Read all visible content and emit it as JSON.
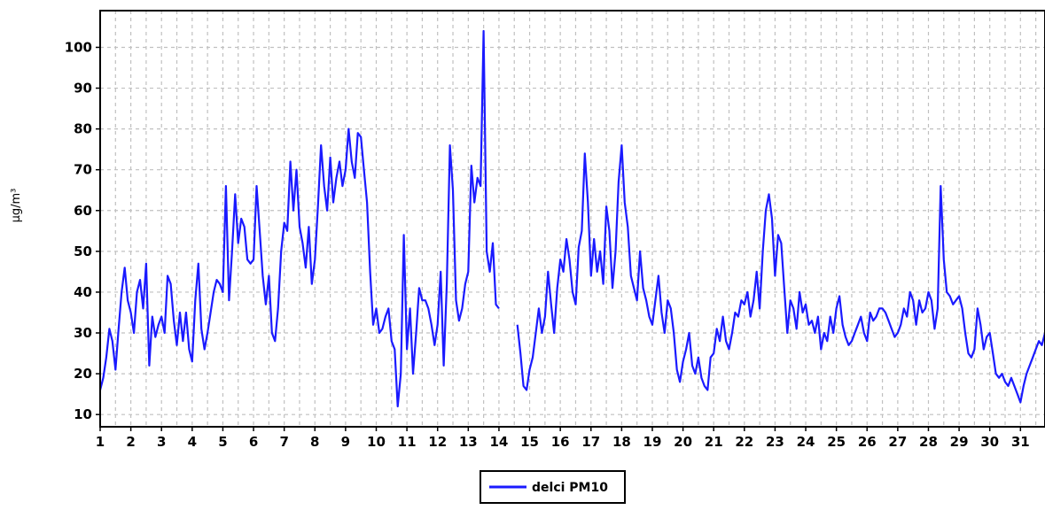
{
  "chart_data": {
    "type": "line",
    "title": "",
    "xlabel": "",
    "ylabel": "µg/m³",
    "xlim": [
      1,
      31.8
    ],
    "ylim": [
      7,
      109
    ],
    "x_ticks": [
      "1",
      "2",
      "3",
      "4",
      "5",
      "6",
      "7",
      "8",
      "9",
      "10",
      "11",
      "12",
      "13",
      "14",
      "15",
      "16",
      "17",
      "18",
      "19",
      "20",
      "21",
      "22",
      "23",
      "24",
      "25",
      "26",
      "27",
      "28",
      "29",
      "30",
      "31"
    ],
    "y_ticks": [
      10,
      20,
      30,
      40,
      50,
      60,
      70,
      80,
      90,
      100
    ],
    "grid": true,
    "legend": "bottom-center",
    "colors": {
      "series": "#1a1aff",
      "grid": "#c0c0c0",
      "axis": "#000000"
    },
    "series": [
      {
        "name": "delci PM10",
        "points": [
          [
            1.0,
            16
          ],
          [
            1.1,
            19
          ],
          [
            1.2,
            24
          ],
          [
            1.3,
            31
          ],
          [
            1.4,
            28
          ],
          [
            1.5,
            21
          ],
          [
            1.6,
            31
          ],
          [
            1.7,
            40
          ],
          [
            1.8,
            46
          ],
          [
            1.9,
            38
          ],
          [
            2.0,
            35
          ],
          [
            2.1,
            30
          ],
          [
            2.2,
            40
          ],
          [
            2.3,
            43
          ],
          [
            2.4,
            36
          ],
          [
            2.5,
            47
          ],
          [
            2.6,
            22
          ],
          [
            2.7,
            34
          ],
          [
            2.8,
            29
          ],
          [
            2.9,
            32
          ],
          [
            3.0,
            34
          ],
          [
            3.1,
            30
          ],
          [
            3.2,
            44
          ],
          [
            3.3,
            42
          ],
          [
            3.4,
            33
          ],
          [
            3.5,
            27
          ],
          [
            3.6,
            35
          ],
          [
            3.7,
            28
          ],
          [
            3.8,
            35
          ],
          [
            3.9,
            26
          ],
          [
            4.0,
            23
          ],
          [
            4.1,
            38
          ],
          [
            4.2,
            47
          ],
          [
            4.3,
            31
          ],
          [
            4.4,
            26
          ],
          [
            4.5,
            30
          ],
          [
            4.6,
            35
          ],
          [
            4.7,
            40
          ],
          [
            4.8,
            43
          ],
          [
            4.9,
            42
          ],
          [
            5.0,
            40
          ],
          [
            5.1,
            66
          ],
          [
            5.2,
            38
          ],
          [
            5.3,
            50
          ],
          [
            5.4,
            64
          ],
          [
            5.5,
            52
          ],
          [
            5.6,
            58
          ],
          [
            5.7,
            56
          ],
          [
            5.8,
            48
          ],
          [
            5.9,
            47
          ],
          [
            6.0,
            48
          ],
          [
            6.1,
            66
          ],
          [
            6.2,
            55
          ],
          [
            6.3,
            44
          ],
          [
            6.4,
            37
          ],
          [
            6.5,
            44
          ],
          [
            6.6,
            30
          ],
          [
            6.7,
            28
          ],
          [
            6.8,
            36
          ],
          [
            6.9,
            50
          ],
          [
            7.0,
            57
          ],
          [
            7.1,
            55
          ],
          [
            7.2,
            72
          ],
          [
            7.3,
            60
          ],
          [
            7.4,
            70
          ],
          [
            7.5,
            56
          ],
          [
            7.6,
            52
          ],
          [
            7.7,
            46
          ],
          [
            7.8,
            56
          ],
          [
            7.9,
            42
          ],
          [
            8.0,
            48
          ],
          [
            8.1,
            61
          ],
          [
            8.2,
            76
          ],
          [
            8.3,
            66
          ],
          [
            8.4,
            60
          ],
          [
            8.5,
            73
          ],
          [
            8.6,
            62
          ],
          [
            8.7,
            68
          ],
          [
            8.8,
            72
          ],
          [
            8.9,
            66
          ],
          [
            9.0,
            70
          ],
          [
            9.1,
            80
          ],
          [
            9.2,
            72
          ],
          [
            9.3,
            68
          ],
          [
            9.4,
            79
          ],
          [
            9.5,
            78
          ],
          [
            9.6,
            70
          ],
          [
            9.7,
            62
          ],
          [
            9.8,
            45
          ],
          [
            9.9,
            32
          ],
          [
            10.0,
            36
          ],
          [
            10.1,
            30
          ],
          [
            10.2,
            31
          ],
          [
            10.3,
            34
          ],
          [
            10.4,
            36
          ],
          [
            10.5,
            28
          ],
          [
            10.6,
            26
          ],
          [
            10.7,
            12
          ],
          [
            10.8,
            20
          ],
          [
            10.9,
            54
          ],
          [
            11.0,
            26
          ],
          [
            11.1,
            36
          ],
          [
            11.2,
            20
          ],
          [
            11.3,
            30
          ],
          [
            11.4,
            41
          ],
          [
            11.5,
            38
          ],
          [
            11.6,
            38
          ],
          [
            11.7,
            36
          ],
          [
            11.8,
            32
          ],
          [
            11.9,
            27
          ],
          [
            12.0,
            32
          ],
          [
            12.1,
            45
          ],
          [
            12.2,
            22
          ],
          [
            12.3,
            42
          ],
          [
            12.4,
            76
          ],
          [
            12.5,
            65
          ],
          [
            12.6,
            38
          ],
          [
            12.7,
            33
          ],
          [
            12.8,
            36
          ],
          [
            12.9,
            42
          ],
          [
            13.0,
            45
          ],
          [
            13.1,
            71
          ],
          [
            13.2,
            62
          ],
          [
            13.3,
            68
          ],
          [
            13.4,
            66
          ],
          [
            13.5,
            104
          ],
          [
            13.6,
            50
          ],
          [
            13.7,
            45
          ],
          [
            13.8,
            52
          ],
          [
            13.9,
            37
          ],
          [
            14.0,
            36
          ],
          null,
          [
            14.6,
            32
          ],
          [
            14.7,
            25
          ],
          [
            14.8,
            17
          ],
          [
            14.9,
            16
          ],
          [
            15.0,
            21
          ],
          [
            15.1,
            24
          ],
          [
            15.2,
            30
          ],
          [
            15.3,
            36
          ],
          [
            15.4,
            30
          ],
          [
            15.5,
            34
          ],
          [
            15.6,
            45
          ],
          [
            15.7,
            37
          ],
          [
            15.8,
            30
          ],
          [
            15.9,
            41
          ],
          [
            16.0,
            48
          ],
          [
            16.1,
            45
          ],
          [
            16.2,
            53
          ],
          [
            16.3,
            48
          ],
          [
            16.4,
            40
          ],
          [
            16.5,
            37
          ],
          [
            16.6,
            51
          ],
          [
            16.7,
            55
          ],
          [
            16.8,
            74
          ],
          [
            16.9,
            62
          ],
          [
            17.0,
            44
          ],
          [
            17.1,
            53
          ],
          [
            17.2,
            45
          ],
          [
            17.3,
            50
          ],
          [
            17.4,
            42
          ],
          [
            17.5,
            61
          ],
          [
            17.6,
            55
          ],
          [
            17.7,
            41
          ],
          [
            17.8,
            50
          ],
          [
            17.9,
            67
          ],
          [
            18.0,
            76
          ],
          [
            18.1,
            62
          ],
          [
            18.2,
            56
          ],
          [
            18.3,
            44
          ],
          [
            18.4,
            41
          ],
          [
            18.5,
            38
          ],
          [
            18.6,
            50
          ],
          [
            18.7,
            41
          ],
          [
            18.8,
            38
          ],
          [
            18.9,
            34
          ],
          [
            19.0,
            32
          ],
          [
            19.1,
            38
          ],
          [
            19.2,
            44
          ],
          [
            19.3,
            35
          ],
          [
            19.4,
            30
          ],
          [
            19.5,
            38
          ],
          [
            19.6,
            36
          ],
          [
            19.7,
            30
          ],
          [
            19.8,
            21
          ],
          [
            19.9,
            18
          ],
          [
            20.0,
            23
          ],
          [
            20.1,
            26
          ],
          [
            20.2,
            30
          ],
          [
            20.3,
            22
          ],
          [
            20.4,
            20
          ],
          [
            20.5,
            24
          ],
          [
            20.6,
            19
          ],
          [
            20.7,
            17
          ],
          [
            20.8,
            16
          ],
          [
            20.9,
            24
          ],
          [
            21.0,
            25
          ],
          [
            21.1,
            31
          ],
          [
            21.2,
            28
          ],
          [
            21.3,
            34
          ],
          [
            21.4,
            28
          ],
          [
            21.5,
            26
          ],
          [
            21.6,
            30
          ],
          [
            21.7,
            35
          ],
          [
            21.8,
            34
          ],
          [
            21.9,
            38
          ],
          [
            22.0,
            37
          ],
          [
            22.1,
            40
          ],
          [
            22.2,
            34
          ],
          [
            22.3,
            38
          ],
          [
            22.4,
            45
          ],
          [
            22.5,
            36
          ],
          [
            22.6,
            50
          ],
          [
            22.7,
            60
          ],
          [
            22.8,
            64
          ],
          [
            22.9,
            58
          ],
          [
            23.0,
            44
          ],
          [
            23.1,
            54
          ],
          [
            23.2,
            52
          ],
          [
            23.3,
            41
          ],
          [
            23.4,
            30
          ],
          [
            23.5,
            38
          ],
          [
            23.6,
            36
          ],
          [
            23.7,
            31
          ],
          [
            23.8,
            40
          ],
          [
            23.9,
            35
          ],
          [
            24.0,
            37
          ],
          [
            24.1,
            32
          ],
          [
            24.2,
            33
          ],
          [
            24.3,
            30
          ],
          [
            24.4,
            34
          ],
          [
            24.5,
            26
          ],
          [
            24.6,
            30
          ],
          [
            24.7,
            28
          ],
          [
            24.8,
            34
          ],
          [
            24.9,
            30
          ],
          [
            25.0,
            36
          ],
          [
            25.1,
            39
          ],
          [
            25.2,
            32
          ],
          [
            25.3,
            29
          ],
          [
            25.4,
            27
          ],
          [
            25.5,
            28
          ],
          [
            25.6,
            30
          ],
          [
            25.7,
            32
          ],
          [
            25.8,
            34
          ],
          [
            25.9,
            30
          ],
          [
            26.0,
            28
          ],
          [
            26.1,
            35
          ],
          [
            26.2,
            33
          ],
          [
            26.3,
            34
          ],
          [
            26.4,
            36
          ],
          [
            26.5,
            36
          ],
          [
            26.6,
            35
          ],
          [
            26.7,
            33
          ],
          [
            26.8,
            31
          ],
          [
            26.9,
            29
          ],
          [
            27.0,
            30
          ],
          [
            27.1,
            32
          ],
          [
            27.2,
            36
          ],
          [
            27.3,
            34
          ],
          [
            27.4,
            40
          ],
          [
            27.5,
            38
          ],
          [
            27.6,
            32
          ],
          [
            27.7,
            38
          ],
          [
            27.8,
            35
          ],
          [
            27.9,
            36
          ],
          [
            28.0,
            40
          ],
          [
            28.1,
            38
          ],
          [
            28.2,
            31
          ],
          [
            28.3,
            36
          ],
          [
            28.4,
            66
          ],
          [
            28.5,
            48
          ],
          [
            28.6,
            40
          ],
          [
            28.7,
            39
          ],
          [
            28.8,
            37
          ],
          [
            28.9,
            38
          ],
          [
            29.0,
            39
          ],
          [
            29.1,
            36
          ],
          [
            29.2,
            30
          ],
          [
            29.3,
            25
          ],
          [
            29.4,
            24
          ],
          [
            29.5,
            26
          ],
          [
            29.6,
            36
          ],
          [
            29.7,
            32
          ],
          [
            29.8,
            26
          ],
          [
            29.9,
            29
          ],
          [
            30.0,
            30
          ],
          [
            30.1,
            25
          ],
          [
            30.2,
            20
          ],
          [
            30.3,
            19
          ],
          [
            30.4,
            20
          ],
          [
            30.5,
            18
          ],
          [
            30.6,
            17
          ],
          [
            30.7,
            19
          ],
          [
            30.8,
            17
          ],
          [
            30.9,
            15
          ],
          [
            31.0,
            13
          ],
          [
            31.1,
            17
          ],
          [
            31.2,
            20
          ],
          [
            31.3,
            22
          ],
          [
            31.4,
            24
          ],
          [
            31.5,
            26
          ],
          [
            31.6,
            28
          ],
          [
            31.7,
            27
          ],
          [
            31.8,
            30
          ]
        ]
      }
    ]
  }
}
